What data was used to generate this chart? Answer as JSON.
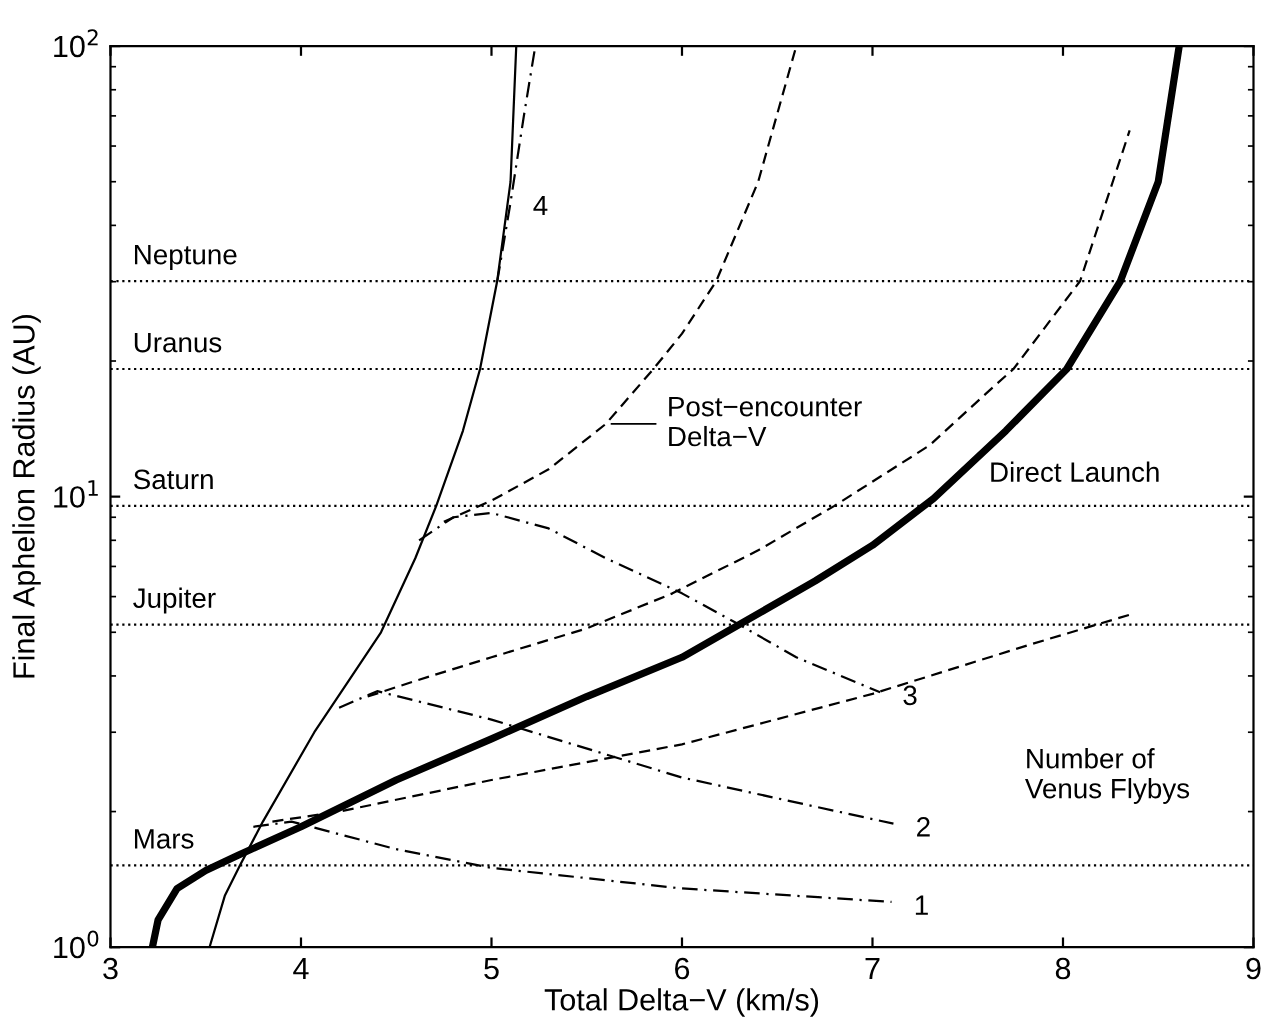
{
  "chart_data": {
    "type": "line",
    "xlabel": "Total Delta−V (km/s)",
    "ylabel": "Final Aphelion Radius (AU)",
    "log": "y",
    "xlim": [
      3,
      9
    ],
    "xticks": [
      3,
      4,
      5,
      6,
      7,
      8,
      9
    ],
    "ylim": [
      1,
      100
    ],
    "yticks": [
      {
        "value": 1,
        "label": "10$^{0}$"
      },
      {
        "value": 10,
        "label": "10$^{1}$"
      },
      {
        "value": 100,
        "label": "10$^{2}$"
      }
    ],
    "grid": false,
    "legend": false,
    "marker": "none",
    "series": [
      {
        "name": "Direct Launch",
        "color": "#000000",
        "line_style": "solid",
        "x": [
          3.22,
          3.25,
          3.35,
          3.5,
          3.67,
          4,
          4.5,
          5,
          5.5,
          6,
          6.3,
          6.7,
          7,
          7.32,
          7.7,
          8.02,
          8.3,
          8.5,
          8.61
        ],
        "values": [
          1.0,
          1.15,
          1.35,
          1.48,
          1.6,
          1.85,
          2.35,
          2.9,
          3.6,
          4.4,
          5.2,
          6.5,
          7.8,
          9.9,
          14,
          19.2,
          30,
          50,
          100
        ]
      },
      {
        "color": "#000000",
        "line_style": "solid",
        "x": [
          3.52,
          3.6,
          3.68,
          3.8,
          4.07,
          4.25,
          4.42,
          4.6,
          4.71,
          4.85,
          4.94,
          5.03,
          5.1,
          5.13
        ],
        "values": [
          1.0,
          1.3,
          1.52,
          1.9,
          3.0,
          3.9,
          5.0,
          7.3,
          9.54,
          14,
          19.2,
          30.1,
          50,
          100
        ]
      },
      {
        "color": "#000000",
        "line_style": "dashdot",
        "x": [
          3.75,
          3.95,
          4.5,
          5,
          6,
          7.1
        ],
        "values": [
          1.85,
          1.9,
          1.65,
          1.5,
          1.35,
          1.26
        ]
      },
      {
        "color": "#000000",
        "line_style": "dashdot",
        "x": [
          4.2,
          4.4,
          5,
          6,
          7.11
        ],
        "values": [
          3.4,
          3.7,
          3.2,
          2.38,
          1.88
        ]
      },
      {
        "color": "#000000",
        "line_style": "dashdot",
        "x": [
          4.62,
          4.8,
          5.0,
          5.3,
          5.6,
          6.0,
          6.3,
          6.6,
          7.04
        ],
        "values": [
          8.0,
          9.0,
          9.2,
          8.5,
          7.3,
          6.1,
          5.2,
          4.4,
          3.68
        ]
      },
      {
        "color": "#000000",
        "line_style": "dashdot",
        "x": [
          5.03,
          5.1,
          5.17,
          5.23
        ],
        "values": [
          30,
          45,
          70,
          100
        ]
      },
      {
        "color": "#000000",
        "line_style": "dashed",
        "x": [
          3.85,
          4.2,
          5,
          6,
          7,
          7.83,
          8.37
        ],
        "values": [
          1.9,
          2.0,
          2.35,
          2.82,
          3.65,
          4.7,
          5.5
        ]
      },
      {
        "color": "#000000",
        "line_style": "dashed",
        "x": [
          4.35,
          4.6,
          5.0,
          5.5,
          5.95,
          6.4,
          6.8,
          7.3,
          7.6,
          7.74,
          8.09,
          8.35
        ],
        "values": [
          3.6,
          3.9,
          4.4,
          5.1,
          6.1,
          7.6,
          9.54,
          13,
          17,
          19.2,
          30.1,
          65
        ]
      },
      {
        "color": "#000000",
        "line_style": "dashed",
        "x": [
          4.75,
          5.0,
          5.3,
          5.6,
          5.85,
          6.0,
          6.18,
          6.4,
          6.6
        ],
        "values": [
          8.8,
          9.8,
          11.5,
          14.5,
          19.2,
          23,
          30.1,
          50,
          100
        ]
      }
    ],
    "ref_lines": [
      {
        "axis": "y",
        "value": 1.52,
        "label": "Mars",
        "color": "#000000",
        "line_style": "dotted"
      },
      {
        "axis": "y",
        "value": 5.2,
        "label": "Jupiter",
        "color": "#000000",
        "line_style": "dotted"
      },
      {
        "axis": "y",
        "value": 9.54,
        "label": "Saturn",
        "color": "#000000",
        "line_style": "dotted"
      },
      {
        "axis": "y",
        "value": 19.2,
        "label": "Uranus",
        "color": "#000000",
        "line_style": "dotted"
      },
      {
        "axis": "y",
        "value": 30.1,
        "label": "Neptune",
        "color": "#000000",
        "line_style": "dotted"
      }
    ],
    "annotations": [
      {
        "text": "1",
        "x": 7.1,
        "y": 1.26
      },
      {
        "text": "2",
        "x": 7.11,
        "y": 1.88
      },
      {
        "text": "3",
        "x": 7.04,
        "y": 3.68
      },
      {
        "text": "4",
        "x": 5.1,
        "y": 45
      },
      {
        "text": "Post−encounter\nDelta−V",
        "x": 5.6,
        "y": 14.5
      },
      "Number of\nVenus Flybys"
    ]
  }
}
